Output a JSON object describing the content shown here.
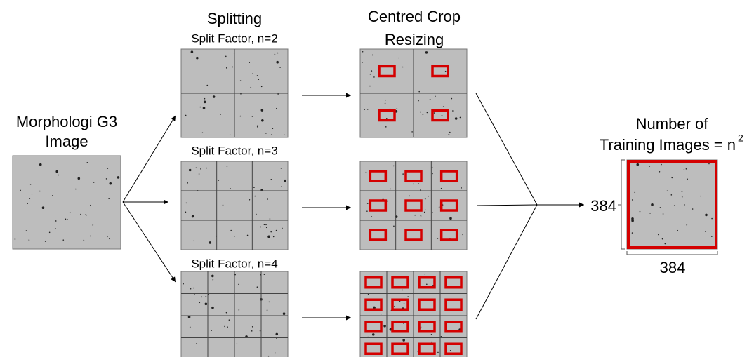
{
  "input": {
    "title_line1": "Morphologi G3",
    "title_line2": "Image"
  },
  "splitting": {
    "title": "Splitting",
    "rows": [
      "Split Factor, n=2",
      "Split Factor, n=3",
      "Split Factor, n=4"
    ]
  },
  "cropping": {
    "title_line1": "Centred Crop",
    "title_line2": "Resizing"
  },
  "output": {
    "title_line1": "Number of",
    "title_line2": "Training Images = n",
    "superscript": "2",
    "height_label": "384",
    "width_label": "384"
  }
}
